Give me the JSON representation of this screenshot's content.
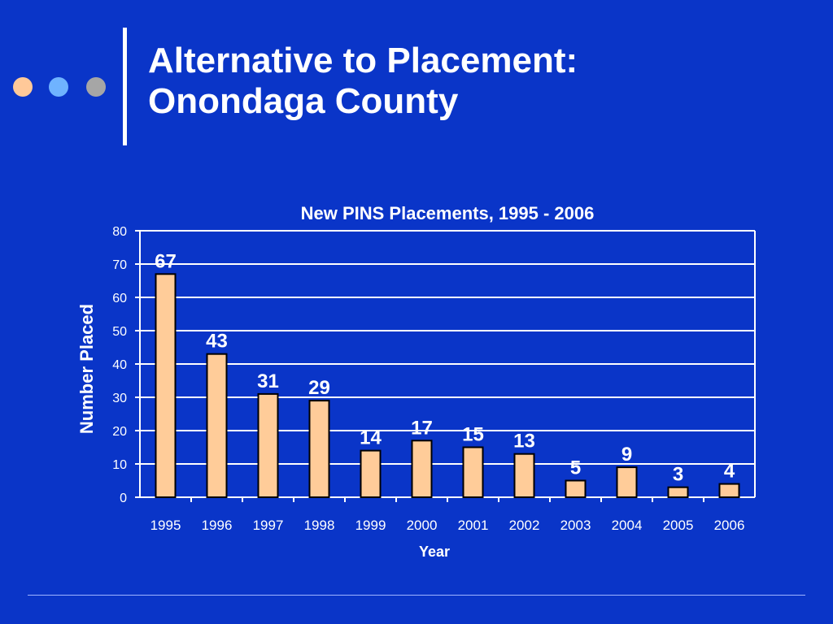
{
  "slide": {
    "title_line1": "Alternative to Placement:",
    "title_line2": "Onondaga County",
    "background_color": "#0a35c8",
    "dot_colors": [
      "#ffc999",
      "#6fb3ff",
      "#a6a6a6"
    ]
  },
  "chart_data": {
    "type": "bar",
    "title": "New PINS Placements, 1995 - 2006",
    "xlabel": "Year",
    "ylabel": "Number Placed",
    "categories": [
      "1995",
      "1996",
      "1997",
      "1998",
      "1999",
      "2000",
      "2001",
      "2002",
      "2003",
      "2004",
      "2005",
      "2006"
    ],
    "values": [
      67,
      43,
      31,
      29,
      14,
      17,
      15,
      13,
      5,
      9,
      3,
      4
    ],
    "ylim": [
      0,
      80
    ],
    "yticks": [
      0,
      10,
      20,
      30,
      40,
      50,
      60,
      70,
      80
    ],
    "grid": true,
    "bar_color": "#ffcc99",
    "data_labels": true
  }
}
